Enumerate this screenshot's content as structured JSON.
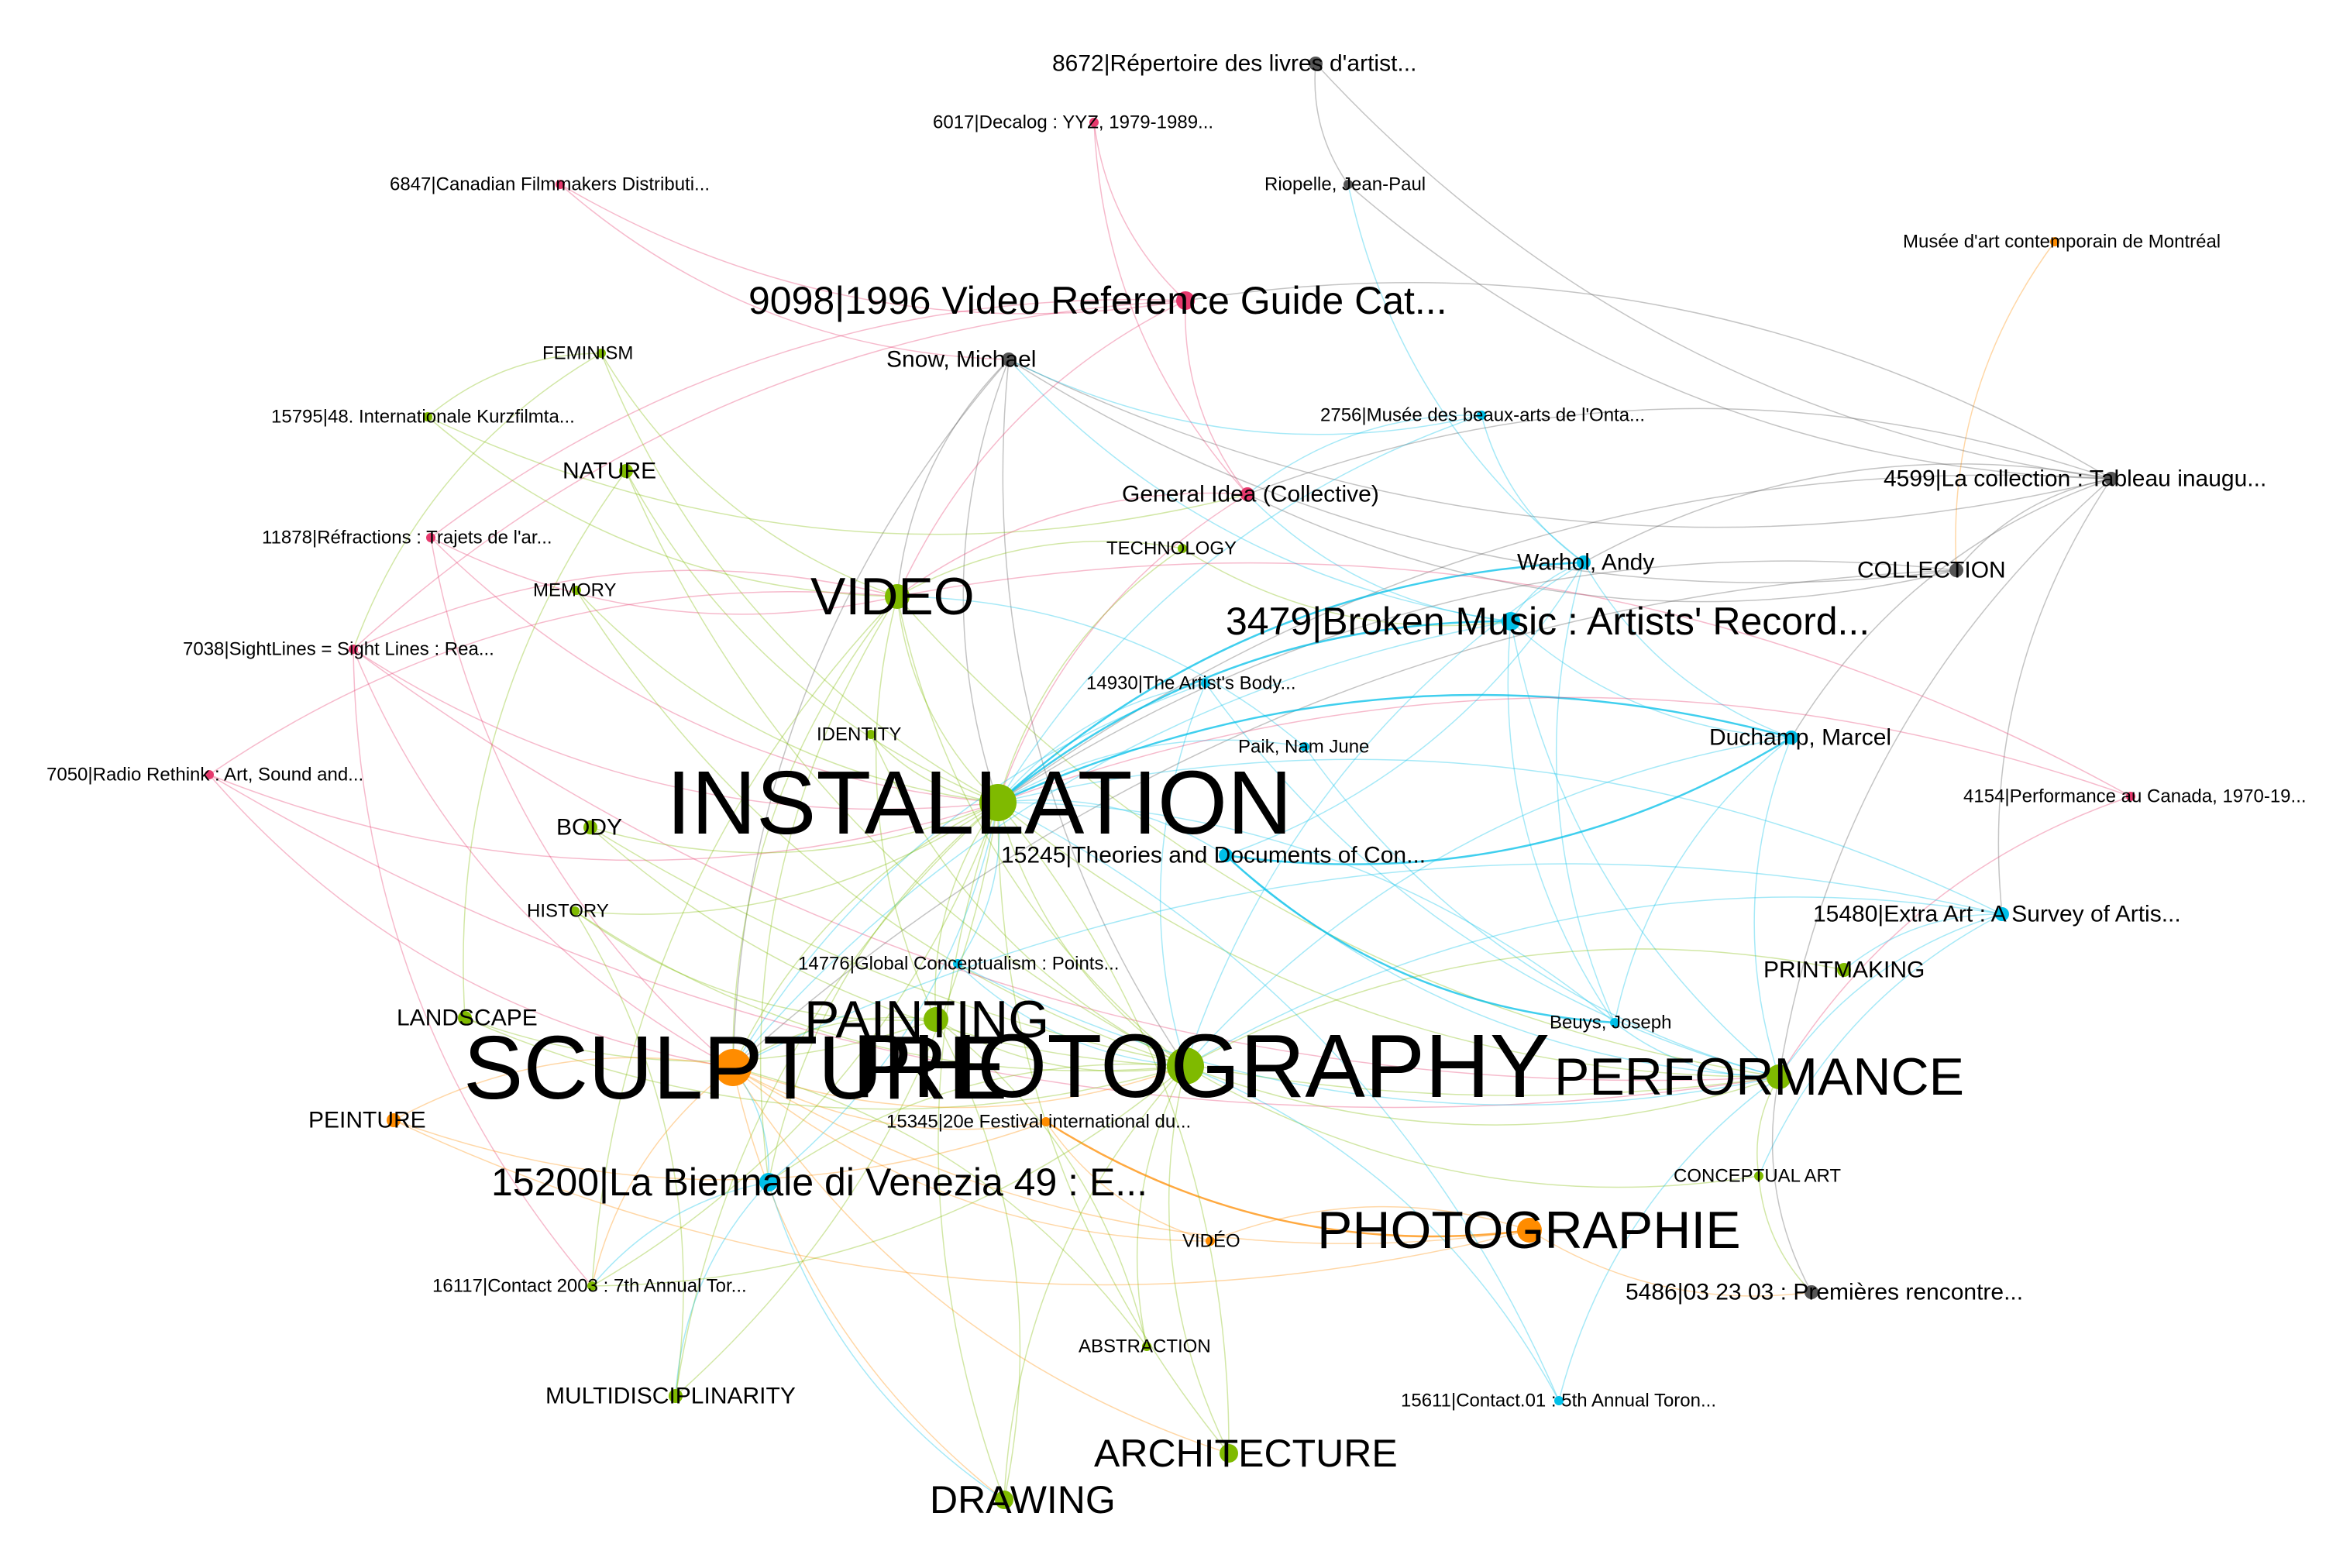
{
  "colors": {
    "green": "#7fba00",
    "orange": "#ff8c00",
    "blue": "#00bfe8",
    "pink": "#e6396d",
    "gray": "#555555"
  },
  "nodes": [
    {
      "id": "n8672",
      "label": "8672|Répertoire des livres d'artist...",
      "color": "gray",
      "size": "medium"
    },
    {
      "id": "n6017",
      "label": "6017|Decalog : YYZ, 1979-1989...",
      "color": "pink",
      "size": "small"
    },
    {
      "id": "n6847",
      "label": "6847|Canadian Filmmakers Distributi...",
      "color": "pink",
      "size": "small"
    },
    {
      "id": "riopelle",
      "label": "Riopelle, Jean-Paul",
      "color": "gray",
      "size": "small"
    },
    {
      "id": "mac",
      "label": "Musée d'art contemporain de Montréal",
      "color": "orange",
      "size": "small"
    },
    {
      "id": "n9098",
      "label": "9098|1996 Video Reference Guide Cat...",
      "color": "pink",
      "size": "large"
    },
    {
      "id": "snow",
      "label": "Snow, Michael",
      "color": "gray",
      "size": "medium"
    },
    {
      "id": "feminism",
      "label": "FEMINISM",
      "color": "green",
      "size": "small"
    },
    {
      "id": "n15795",
      "label": "15795|48. Internationale Kurzfilmta...",
      "color": "green",
      "size": "small"
    },
    {
      "id": "n2756",
      "label": "2756|Musée des beaux-arts de l'Onta...",
      "color": "blue",
      "size": "small"
    },
    {
      "id": "nature",
      "label": "NATURE",
      "color": "green",
      "size": "medium"
    },
    {
      "id": "n4599",
      "label": "4599|La collection : Tableau inaugu...",
      "color": "gray",
      "size": "medium"
    },
    {
      "id": "gi",
      "label": "General Idea (Collective)",
      "color": "pink",
      "size": "medium"
    },
    {
      "id": "n11878",
      "label": "11878|Réfractions : Trajets de l'ar...",
      "color": "pink",
      "size": "small"
    },
    {
      "id": "technology",
      "label": "TECHNOLOGY",
      "color": "green",
      "size": "small"
    },
    {
      "id": "warhol",
      "label": "Warhol, Andy",
      "color": "blue",
      "size": "medium"
    },
    {
      "id": "memory",
      "label": "MEMORY",
      "color": "green",
      "size": "small"
    },
    {
      "id": "collection",
      "label": "COLLECTION",
      "color": "gray",
      "size": "medium"
    },
    {
      "id": "video",
      "label": "VIDEO",
      "color": "green",
      "size": "xlarge"
    },
    {
      "id": "n3479",
      "label": "3479|Broken Music : Artists' Record...",
      "color": "blue",
      "size": "large"
    },
    {
      "id": "n7038",
      "label": "7038|SightLines = Sight Lines : Rea...",
      "color": "pink",
      "size": "small"
    },
    {
      "id": "n14930",
      "label": "14930|The Artist's Body...",
      "color": "blue",
      "size": "small"
    },
    {
      "id": "identity",
      "label": "IDENTITY",
      "color": "green",
      "size": "small"
    },
    {
      "id": "duchamp",
      "label": "Duchamp, Marcel",
      "color": "blue",
      "size": "medium"
    },
    {
      "id": "paik",
      "label": "Paik, Nam June",
      "color": "blue",
      "size": "small"
    },
    {
      "id": "n7050",
      "label": "7050|Radio Rethink : Art, Sound and...",
      "color": "pink",
      "size": "small"
    },
    {
      "id": "installation",
      "label": "INSTALLATION",
      "color": "green",
      "size": "huge"
    },
    {
      "id": "n4154",
      "label": "4154|Performance au Canada, 1970-19...",
      "color": "pink",
      "size": "small"
    },
    {
      "id": "body",
      "label": "BODY",
      "color": "green",
      "size": "medium"
    },
    {
      "id": "n15245",
      "label": "15245|Theories and Documents of Con...",
      "color": "blue",
      "size": "medium"
    },
    {
      "id": "history",
      "label": "HISTORY",
      "color": "green",
      "size": "small"
    },
    {
      "id": "n15480",
      "label": "15480|Extra Art : A Survey of Artis...",
      "color": "blue",
      "size": "medium"
    },
    {
      "id": "n14776",
      "label": "14776|Global Conceptualism : Points...",
      "color": "blue",
      "size": "small"
    },
    {
      "id": "printmaking",
      "label": "PRINTMAKING",
      "color": "green",
      "size": "medium"
    },
    {
      "id": "painting",
      "label": "PAINTING",
      "color": "green",
      "size": "xlarge"
    },
    {
      "id": "landscape",
      "label": "LANDSCAPE",
      "color": "green",
      "size": "medium"
    },
    {
      "id": "beuys",
      "label": "Beuys, Joseph",
      "color": "blue",
      "size": "small"
    },
    {
      "id": "sculpture",
      "label": "SCULPTURE",
      "color": "orange",
      "size": "huge"
    },
    {
      "id": "photography",
      "label": "PHOTOGRAPHY",
      "color": "green",
      "size": "huge"
    },
    {
      "id": "performance",
      "label": "PERFORMANCE",
      "color": "green",
      "size": "xlarge"
    },
    {
      "id": "peinture",
      "label": "PEINTURE",
      "color": "orange",
      "size": "medium"
    },
    {
      "id": "n15345",
      "label": "15345|20e Festival international du...",
      "color": "orange",
      "size": "small"
    },
    {
      "id": "n15200",
      "label": "15200|La Biennale di Venezia 49 : E...",
      "color": "blue",
      "size": "large"
    },
    {
      "id": "conceptual",
      "label": "CONCEPTUAL ART",
      "color": "green",
      "size": "small"
    },
    {
      "id": "photographie",
      "label": "PHOTOGRAPHIE",
      "color": "orange",
      "size": "xlarge"
    },
    {
      "id": "videofr",
      "label": "VIDÉO",
      "color": "orange",
      "size": "small"
    },
    {
      "id": "n16117",
      "label": "16117|Contact 2003 : 7th Annual Tor...",
      "color": "green",
      "size": "small"
    },
    {
      "id": "n5486",
      "label": "5486|03 23 03 : Premières rencontre...",
      "color": "gray",
      "size": "medium"
    },
    {
      "id": "abstraction",
      "label": "ABSTRACTION",
      "color": "green",
      "size": "small"
    },
    {
      "id": "multidisc",
      "label": "MULTIDISCIPLINARITY",
      "color": "green",
      "size": "medium"
    },
    {
      "id": "n15611",
      "label": "15611|Contact.01 : 5th Annual Toron...",
      "color": "blue",
      "size": "small"
    },
    {
      "id": "architecture",
      "label": "ARCHITECTURE",
      "color": "green",
      "size": "large"
    },
    {
      "id": "drawing",
      "label": "DRAWING",
      "color": "green",
      "size": "large"
    }
  ],
  "edges": [
    {
      "s": "n8672",
      "t": "riopelle",
      "c": "gray"
    },
    {
      "s": "riopelle",
      "t": "n4599",
      "c": "gray"
    },
    {
      "s": "riopelle",
      "t": "warhol",
      "c": "blue"
    },
    {
      "s": "n8672",
      "t": "n4599",
      "c": "gray"
    },
    {
      "s": "mac",
      "t": "collection",
      "c": "orange"
    },
    {
      "s": "n6017",
      "t": "n9098",
      "c": "pink"
    },
    {
      "s": "n6017",
      "t": "gi",
      "c": "pink"
    },
    {
      "s": "n6847",
      "t": "snow",
      "c": "pink"
    },
    {
      "s": "n6847",
      "t": "n9098",
      "c": "pink"
    },
    {
      "s": "snow",
      "t": "n4599",
      "c": "gray"
    },
    {
      "s": "snow",
      "t": "collection",
      "c": "gray"
    },
    {
      "s": "snow",
      "t": "video",
      "c": "gray"
    },
    {
      "s": "snow",
      "t": "installation",
      "c": "gray"
    },
    {
      "s": "snow",
      "t": "photography",
      "c": "gray"
    },
    {
      "s": "snow",
      "t": "n2756",
      "c": "blue"
    },
    {
      "s": "snow",
      "t": "n3479",
      "c": "blue"
    },
    {
      "s": "snow",
      "t": "sculpture",
      "c": "gray"
    },
    {
      "s": "n9098",
      "t": "video",
      "c": "pink"
    },
    {
      "s": "n9098",
      "t": "n7038",
      "c": "pink"
    },
    {
      "s": "n9098",
      "t": "n11878",
      "c": "pink"
    },
    {
      "s": "n9098",
      "t": "gi",
      "c": "pink"
    },
    {
      "s": "feminism",
      "t": "video",
      "c": "green"
    },
    {
      "s": "feminism",
      "t": "n7038",
      "c": "green"
    },
    {
      "s": "feminism",
      "t": "n15795",
      "c": "green"
    },
    {
      "s": "feminism",
      "t": "installation",
      "c": "green"
    },
    {
      "s": "n15795",
      "t": "video",
      "c": "green"
    },
    {
      "s": "n15795",
      "t": "gi",
      "c": "green"
    },
    {
      "s": "n2756",
      "t": "gi",
      "c": "blue"
    },
    {
      "s": "n2756",
      "t": "warhol",
      "c": "blue"
    },
    {
      "s": "n2756",
      "t": "installation",
      "c": "blue"
    },
    {
      "s": "nature",
      "t": "installation",
      "c": "green"
    },
    {
      "s": "nature",
      "t": "landscape",
      "c": "green"
    },
    {
      "s": "nature",
      "t": "photography",
      "c": "green"
    },
    {
      "s": "n4599",
      "t": "collection",
      "c": "gray"
    },
    {
      "s": "n4599",
      "t": "duchamp",
      "c": "gray"
    },
    {
      "s": "n4599",
      "t": "warhol",
      "c": "gray"
    },
    {
      "s": "n4599",
      "t": "gi",
      "c": "gray"
    },
    {
      "s": "n4599",
      "t": "installation",
      "c": "gray"
    },
    {
      "s": "n4599",
      "t": "performance",
      "c": "gray"
    },
    {
      "s": "n4599",
      "t": "n15480",
      "c": "gray"
    },
    {
      "s": "n4599",
      "t": "n9098",
      "c": "gray"
    },
    {
      "s": "gi",
      "t": "video",
      "c": "pink"
    },
    {
      "s": "gi",
      "t": "n3479",
      "c": "blue"
    },
    {
      "s": "gi",
      "t": "installation",
      "c": "pink"
    },
    {
      "s": "gi",
      "t": "collection",
      "c": "gray"
    },
    {
      "s": "n11878",
      "t": "video",
      "c": "pink"
    },
    {
      "s": "n11878",
      "t": "installation",
      "c": "pink"
    },
    {
      "s": "n11878",
      "t": "sculpture",
      "c": "pink"
    },
    {
      "s": "technology",
      "t": "video",
      "c": "green"
    },
    {
      "s": "technology",
      "t": "installation",
      "c": "green"
    },
    {
      "s": "technology",
      "t": "n3479",
      "c": "green"
    },
    {
      "s": "warhol",
      "t": "n3479",
      "c": "blue"
    },
    {
      "s": "warhol",
      "t": "installation",
      "c": "blue",
      "w": "strong"
    },
    {
      "s": "warhol",
      "t": "photography",
      "c": "blue"
    },
    {
      "s": "warhol",
      "t": "duchamp",
      "c": "blue"
    },
    {
      "s": "warhol",
      "t": "beuys",
      "c": "blue"
    },
    {
      "s": "memory",
      "t": "installation",
      "c": "green"
    },
    {
      "s": "memory",
      "t": "photography",
      "c": "green"
    },
    {
      "s": "collection",
      "t": "installation",
      "c": "gray"
    },
    {
      "s": "collection",
      "t": "sculpture",
      "c": "gray"
    },
    {
      "s": "video",
      "t": "installation",
      "c": "green"
    },
    {
      "s": "video",
      "t": "photography",
      "c": "green"
    },
    {
      "s": "video",
      "t": "sculpture",
      "c": "green"
    },
    {
      "s": "video",
      "t": "painting",
      "c": "green"
    },
    {
      "s": "video",
      "t": "performance",
      "c": "green"
    },
    {
      "s": "video",
      "t": "n7038",
      "c": "pink"
    },
    {
      "s": "video",
      "t": "n7050",
      "c": "pink"
    },
    {
      "s": "video",
      "t": "n16117",
      "c": "green"
    },
    {
      "s": "video",
      "t": "n15200",
      "c": "green"
    },
    {
      "s": "n3479",
      "t": "installation",
      "c": "blue",
      "w": "strong"
    },
    {
      "s": "n3479",
      "t": "duchamp",
      "c": "blue"
    },
    {
      "s": "n3479",
      "t": "beuys",
      "c": "blue"
    },
    {
      "s": "n3479",
      "t": "performance",
      "c": "blue"
    },
    {
      "s": "n3479",
      "t": "sculpture",
      "c": "blue"
    },
    {
      "s": "n7038",
      "t": "installation",
      "c": "pink"
    },
    {
      "s": "n7038",
      "t": "sculpture",
      "c": "pink"
    },
    {
      "s": "n7038",
      "t": "performance",
      "c": "pink"
    },
    {
      "s": "n7038",
      "t": "n16117",
      "c": "pink"
    },
    {
      "s": "n14930",
      "t": "installation",
      "c": "blue"
    },
    {
      "s": "n14930",
      "t": "performance",
      "c": "blue"
    },
    {
      "s": "n14930",
      "t": "photography",
      "c": "blue"
    },
    {
      "s": "n14930",
      "t": "sculpture",
      "c": "blue"
    },
    {
      "s": "identity",
      "t": "installation",
      "c": "green"
    },
    {
      "s": "identity",
      "t": "photography",
      "c": "green"
    },
    {
      "s": "duchamp",
      "t": "installation",
      "c": "blue",
      "w": "strong"
    },
    {
      "s": "duchamp",
      "t": "photography",
      "c": "blue"
    },
    {
      "s": "duchamp",
      "t": "performance",
      "c": "blue"
    },
    {
      "s": "duchamp",
      "t": "beuys",
      "c": "blue"
    },
    {
      "s": "paik",
      "t": "video",
      "c": "blue"
    },
    {
      "s": "paik",
      "t": "installation",
      "c": "blue"
    },
    {
      "s": "paik",
      "t": "performance",
      "c": "blue"
    },
    {
      "s": "n7050",
      "t": "installation",
      "c": "pink"
    },
    {
      "s": "n7050",
      "t": "sculpture",
      "c": "pink"
    },
    {
      "s": "n7050",
      "t": "performance",
      "c": "pink"
    },
    {
      "s": "installation",
      "t": "photography",
      "c": "green"
    },
    {
      "s": "installation",
      "t": "sculpture",
      "c": "green"
    },
    {
      "s": "installation",
      "t": "performance",
      "c": "green"
    },
    {
      "s": "installation",
      "t": "painting",
      "c": "green"
    },
    {
      "s": "installation",
      "t": "n15200",
      "c": "green"
    },
    {
      "s": "installation",
      "t": "architecture",
      "c": "green"
    },
    {
      "s": "installation",
      "t": "drawing",
      "c": "green"
    },
    {
      "s": "installation",
      "t": "multidisc",
      "c": "green"
    },
    {
      "s": "n4154",
      "t": "performance",
      "c": "pink"
    },
    {
      "s": "n4154",
      "t": "installation",
      "c": "pink"
    },
    {
      "s": "n4154",
      "t": "video",
      "c": "pink"
    },
    {
      "s": "body",
      "t": "performance",
      "c": "green"
    },
    {
      "s": "body",
      "t": "installation",
      "c": "green"
    },
    {
      "s": "body",
      "t": "photography",
      "c": "green"
    },
    {
      "s": "n15245",
      "t": "beuys",
      "c": "blue",
      "w": "strong"
    },
    {
      "s": "n15245",
      "t": "duchamp",
      "c": "blue",
      "w": "strong"
    },
    {
      "s": "n15245",
      "t": "installation",
      "c": "blue"
    },
    {
      "s": "n15245",
      "t": "performance",
      "c": "blue"
    },
    {
      "s": "n15245",
      "t": "warhol",
      "c": "blue"
    },
    {
      "s": "history",
      "t": "photography",
      "c": "green"
    },
    {
      "s": "history",
      "t": "installation",
      "c": "green"
    },
    {
      "s": "history",
      "t": "painting",
      "c": "green"
    },
    {
      "s": "n15480",
      "t": "performance",
      "c": "blue"
    },
    {
      "s": "n15480",
      "t": "installation",
      "c": "blue"
    },
    {
      "s": "n15480",
      "t": "photography",
      "c": "blue"
    },
    {
      "s": "n15480",
      "t": "printmaking",
      "c": "blue"
    },
    {
      "s": "n15480",
      "t": "conceptual",
      "c": "blue"
    },
    {
      "s": "n15480",
      "t": "sculpture",
      "c": "blue"
    },
    {
      "s": "n14776",
      "t": "installation",
      "c": "blue"
    },
    {
      "s": "n14776",
      "t": "performance",
      "c": "blue"
    },
    {
      "s": "n14776",
      "t": "photography",
      "c": "blue"
    },
    {
      "s": "printmaking",
      "t": "photography",
      "c": "green"
    },
    {
      "s": "painting",
      "t": "photography",
      "c": "green"
    },
    {
      "s": "painting",
      "t": "sculpture",
      "c": "green"
    },
    {
      "s": "landscape",
      "t": "photography",
      "c": "green"
    },
    {
      "s": "landscape",
      "t": "painting",
      "c": "green"
    },
    {
      "s": "beuys",
      "t": "performance",
      "c": "blue"
    },
    {
      "s": "beuys",
      "t": "installation",
      "c": "blue"
    },
    {
      "s": "sculpture",
      "t": "photography",
      "c": "orange"
    },
    {
      "s": "sculpture",
      "t": "peinture",
      "c": "orange"
    },
    {
      "s": "sculpture",
      "t": "photographie",
      "c": "orange"
    },
    {
      "s": "sculpture",
      "t": "videofr",
      "c": "orange"
    },
    {
      "s": "sculpture",
      "t": "n15345",
      "c": "orange"
    },
    {
      "s": "sculpture",
      "t": "n16117",
      "c": "orange"
    },
    {
      "s": "sculpture",
      "t": "drawing",
      "c": "orange"
    },
    {
      "s": "sculpture",
      "t": "architecture",
      "c": "orange"
    },
    {
      "s": "photography",
      "t": "performance",
      "c": "green"
    },
    {
      "s": "photography",
      "t": "n15200",
      "c": "green"
    },
    {
      "s": "photography",
      "t": "conceptual",
      "c": "green"
    },
    {
      "s": "photography",
      "t": "architecture",
      "c": "green"
    },
    {
      "s": "photography",
      "t": "abstraction",
      "c": "green"
    },
    {
      "s": "photography",
      "t": "drawing",
      "c": "green"
    },
    {
      "s": "performance",
      "t": "conceptual",
      "c": "green"
    },
    {
      "s": "performance",
      "t": "n5486",
      "c": "gray"
    },
    {
      "s": "performance",
      "t": "n15611",
      "c": "blue"
    },
    {
      "s": "peinture",
      "t": "n15345",
      "c": "orange"
    },
    {
      "s": "peinture",
      "t": "photographie",
      "c": "orange"
    },
    {
      "s": "n15345",
      "t": "photographie",
      "c": "orange",
      "w": "strong"
    },
    {
      "s": "n15345",
      "t": "videofr",
      "c": "orange"
    },
    {
      "s": "n15200",
      "t": "sculpture",
      "c": "blue"
    },
    {
      "s": "n15200",
      "t": "installation",
      "c": "blue"
    },
    {
      "s": "n15200",
      "t": "multidisc",
      "c": "blue"
    },
    {
      "s": "n15200",
      "t": "drawing",
      "c": "blue"
    },
    {
      "s": "n15200",
      "t": "n16117",
      "c": "blue"
    },
    {
      "s": "conceptual",
      "t": "n5486",
      "c": "green"
    },
    {
      "s": "photographie",
      "t": "videofr",
      "c": "orange"
    },
    {
      "s": "photographie",
      "t": "n5486",
      "c": "orange"
    },
    {
      "s": "n16117",
      "t": "photography",
      "c": "green"
    },
    {
      "s": "n16117",
      "t": "installation",
      "c": "green"
    },
    {
      "s": "abstraction",
      "t": "painting",
      "c": "green"
    },
    {
      "s": "abstraction",
      "t": "sculpture",
      "c": "green"
    },
    {
      "s": "n15611",
      "t": "installation",
      "c": "blue"
    },
    {
      "s": "n15611",
      "t": "photography",
      "c": "blue"
    },
    {
      "s": "architecture",
      "t": "installation",
      "c": "green"
    },
    {
      "s": "drawing",
      "t": "painting",
      "c": "green"
    },
    {
      "s": "multidisc",
      "t": "installation",
      "c": "green"
    },
    {
      "s": "multidisc",
      "t": "history",
      "c": "green"
    }
  ]
}
